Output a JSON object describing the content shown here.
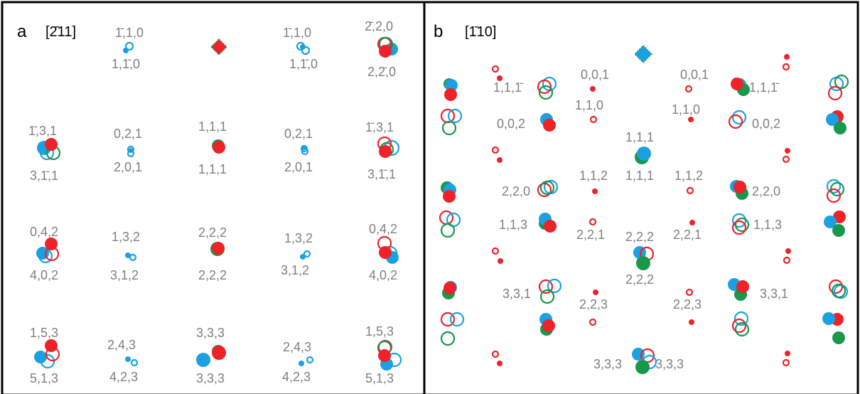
{
  "colors": {
    "red": "#ee2229",
    "blue": "#1ba1e2",
    "green": "#17984a",
    "label": "#7f7f7f",
    "border": "#000000"
  },
  "panel_a": {
    "letter": "a",
    "zone_axis": "[2̄11]",
    "labels": [
      "1̄,1,0",
      "1,1̄,0",
      "1̄,1,0",
      "1,1̄,0",
      "2̄,2,0",
      "2,2̄,0",
      "1̄,3,1",
      "3,1̄,1",
      "0,2,1",
      "2,0,1",
      "1,1,1",
      "1,1,1",
      "0,2,1",
      "2,0,1",
      "1̄,3,1",
      "3,1̄,1",
      "0,4,2",
      "4,0,2",
      "1,3,2",
      "3,1,2",
      "2,2,2",
      "2,2,2",
      "1,3,2",
      "3,1,2",
      "0,4,2",
      "4,0,2",
      "1,5,3",
      "5,1,3",
      "2,4,3",
      "4,2,3",
      "3,3,3",
      "3,3,3",
      "2,4,3",
      "4,2,3",
      "1,5,3",
      "5,1,3"
    ]
  },
  "panel_b": {
    "letter": "b",
    "zone_axis": "[1̄10]",
    "labels": [
      "1,1,1̄",
      "1,1,1̄",
      "0,0,1",
      "0,0,1",
      "0,0,2",
      "0,0,2",
      "1,1,0",
      "1,1,0",
      "1,1,1",
      "1,1,1",
      "1,1,2",
      "1,1,2",
      "2,2,0",
      "2,2,0",
      "1,1,3",
      "1,1,3",
      "2,2,1",
      "2,2,1",
      "2,2,2",
      "2,2,2",
      "3,3,1",
      "3,3,1",
      "2,2,3",
      "2,2,3",
      "3,3,3",
      "3,3,3"
    ]
  }
}
